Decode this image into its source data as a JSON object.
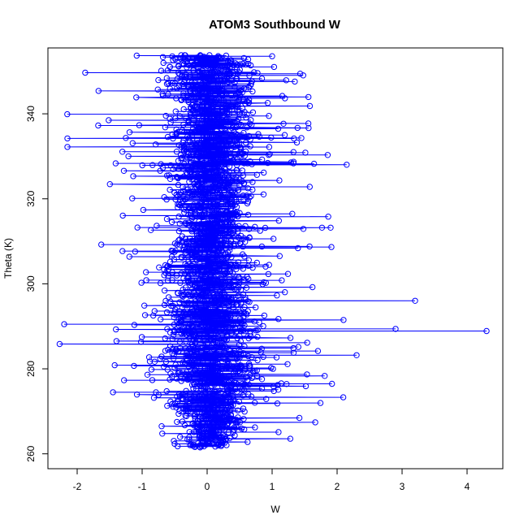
{
  "chart_data": {
    "type": "scatter",
    "title": "ATOM3 Southbound W",
    "xlabel": "W",
    "ylabel": "Theta (K)",
    "xlim": [
      -2.45,
      4.55
    ],
    "ylim": [
      256.5,
      355.5
    ],
    "x_ticks": [
      -2,
      -1,
      0,
      1,
      2,
      3,
      4
    ],
    "y_ticks": [
      260,
      280,
      300,
      320,
      340
    ],
    "x_tick_labels": [
      "-2",
      "-1",
      "0",
      "1",
      "2",
      "3",
      "4"
    ],
    "y_tick_labels": [
      "260",
      "280",
      "300",
      "320",
      "340"
    ],
    "series_color": "#0000ff",
    "marker": "open-circle",
    "connected": true,
    "point_count": 2400,
    "profile_summary": {
      "theta_range": [
        261.5,
        353.8
      ],
      "core_w_range": [
        -0.4,
        0.6
      ],
      "notable_points": [
        {
          "x": -2.15,
          "y": 334.2
        },
        {
          "x": -2.15,
          "y": 332.2
        },
        {
          "x": -2.2,
          "y": 290.5
        },
        {
          "x": -0.7,
          "y": 266.5
        },
        {
          "x": 1.45,
          "y": 334.3
        },
        {
          "x": 1.9,
          "y": 313.2
        },
        {
          "x": 2.3,
          "y": 283.2
        },
        {
          "x": 2.9,
          "y": 289.4
        },
        {
          "x": 3.2,
          "y": 296.0
        },
        {
          "x": 4.3,
          "y": 288.9
        }
      ]
    }
  }
}
